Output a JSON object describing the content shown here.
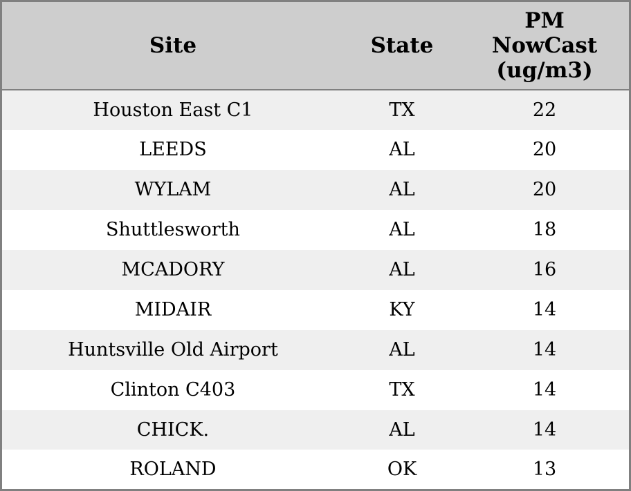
{
  "colors": {
    "header_bg": "#cecece",
    "row_alt_bg": "#efefef",
    "row_bg": "#ffffff",
    "border": "#808080",
    "text": "#000000"
  },
  "chart_data": {
    "type": "table",
    "title": "",
    "columns": [
      "Site",
      "State",
      "PM NowCast (ug/m3)"
    ],
    "column_labels_display": [
      "Site",
      "State",
      "PM\nNowCast\n(ug/m3)"
    ],
    "column_keys": [
      "site",
      "state",
      "pm-nowcast"
    ],
    "rows": [
      [
        "Houston East C1",
        "TX",
        "22"
      ],
      [
        "LEEDS",
        "AL",
        "20"
      ],
      [
        "WYLAM",
        "AL",
        "20"
      ],
      [
        "Shuttlesworth",
        "AL",
        "18"
      ],
      [
        "MCADORY",
        "AL",
        "16"
      ],
      [
        "MIDAIR",
        "KY",
        "14"
      ],
      [
        "Huntsville Old Airport",
        "AL",
        "14"
      ],
      [
        "Clinton C403",
        "TX",
        "14"
      ],
      [
        "CHICK.",
        "AL",
        "14"
      ],
      [
        "ROLAND",
        "OK",
        "13"
      ]
    ]
  }
}
